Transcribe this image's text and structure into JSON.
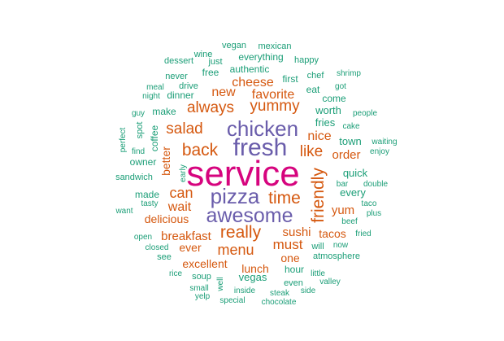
{
  "chart_data": {
    "type": "wordcloud",
    "palette": {
      "tier1": "#d6047e",
      "tier2": "#6a5dab",
      "tier3": "#d5580f",
      "tier4": "#1b9e77"
    },
    "words": [
      {
        "text": "service",
        "tier": "tier1",
        "weight": 100
      },
      {
        "text": "fresh",
        "tier": "tier2",
        "weight": 68
      },
      {
        "text": "chicken",
        "tier": "tier2",
        "weight": 60
      },
      {
        "text": "pizza",
        "tier": "tier2",
        "weight": 60
      },
      {
        "text": "awesome",
        "tier": "tier2",
        "weight": 58
      },
      {
        "text": "back",
        "tier": "tier3",
        "weight": 48
      },
      {
        "text": "time",
        "tier": "tier3",
        "weight": 48
      },
      {
        "text": "really",
        "tier": "tier3",
        "weight": 47
      },
      {
        "text": "friendly",
        "tier": "tier3",
        "weight": 47
      },
      {
        "text": "like",
        "tier": "tier3",
        "weight": 45
      },
      {
        "text": "always",
        "tier": "tier3",
        "weight": 44
      },
      {
        "text": "yummy",
        "tier": "tier3",
        "weight": 43
      },
      {
        "text": "salad",
        "tier": "tier3",
        "weight": 43
      },
      {
        "text": "can",
        "tier": "tier3",
        "weight": 42
      },
      {
        "text": "menu",
        "tier": "tier3",
        "weight": 41
      },
      {
        "text": "must",
        "tier": "tier3",
        "weight": 40
      },
      {
        "text": "wait",
        "tier": "tier3",
        "weight": 39
      },
      {
        "text": "nice",
        "tier": "tier3",
        "weight": 38
      },
      {
        "text": "new",
        "tier": "tier3",
        "weight": 38
      },
      {
        "text": "cheese",
        "tier": "tier3",
        "weight": 37
      },
      {
        "text": "favorite",
        "tier": "tier3",
        "weight": 37
      },
      {
        "text": "sushi",
        "tier": "tier3",
        "weight": 36
      },
      {
        "text": "yum",
        "tier": "tier3",
        "weight": 36
      },
      {
        "text": "order",
        "tier": "tier3",
        "weight": 35
      },
      {
        "text": "breakfast",
        "tier": "tier3",
        "weight": 35
      },
      {
        "text": "delicious",
        "tier": "tier3",
        "weight": 34
      },
      {
        "text": "excellent",
        "tier": "tier3",
        "weight": 34
      },
      {
        "text": "lunch",
        "tier": "tier3",
        "weight": 34
      },
      {
        "text": "tacos",
        "tier": "tier3",
        "weight": 34
      },
      {
        "text": "ever",
        "tier": "tier3",
        "weight": 33
      },
      {
        "text": "one",
        "tier": "tier3",
        "weight": 33
      },
      {
        "text": "better",
        "tier": "tier3",
        "weight": 33
      },
      {
        "text": "town",
        "tier": "tier4",
        "weight": 31
      },
      {
        "text": "quick",
        "tier": "tier4",
        "weight": 31
      },
      {
        "text": "every",
        "tier": "tier4",
        "weight": 31
      },
      {
        "text": "fries",
        "tier": "tier4",
        "weight": 31
      },
      {
        "text": "worth",
        "tier": "tier4",
        "weight": 31
      },
      {
        "text": "vegas",
        "tier": "tier4",
        "weight": 31
      },
      {
        "text": "coffee",
        "tier": "tier4",
        "weight": 30
      },
      {
        "text": "first",
        "tier": "tier4",
        "weight": 30
      },
      {
        "text": "eat",
        "tier": "tier4",
        "weight": 30
      },
      {
        "text": "come",
        "tier": "tier4",
        "weight": 30
      },
      {
        "text": "free",
        "tier": "tier4",
        "weight": 30
      },
      {
        "text": "make",
        "tier": "tier4",
        "weight": 30
      },
      {
        "text": "dinner",
        "tier": "tier4",
        "weight": 30
      },
      {
        "text": "authentic",
        "tier": "tier4",
        "weight": 30
      },
      {
        "text": "everything",
        "tier": "tier4",
        "weight": 30
      },
      {
        "text": "owner",
        "tier": "tier4",
        "weight": 30
      },
      {
        "text": "made",
        "tier": "tier4",
        "weight": 30
      },
      {
        "text": "hour",
        "tier": "tier4",
        "weight": 30
      },
      {
        "text": "atmosphere",
        "tier": "tier4",
        "weight": 29
      },
      {
        "text": "will",
        "tier": "tier4",
        "weight": 29
      },
      {
        "text": "sandwich",
        "tier": "tier4",
        "weight": 29
      },
      {
        "text": "soup",
        "tier": "tier4",
        "weight": 29
      },
      {
        "text": "drive",
        "tier": "tier4",
        "weight": 29
      },
      {
        "text": "spot",
        "tier": "tier4",
        "weight": 28
      },
      {
        "text": "see",
        "tier": "tier4",
        "weight": 28
      },
      {
        "text": "even",
        "tier": "tier4",
        "weight": 28
      },
      {
        "text": "chef",
        "tier": "tier4",
        "weight": 27
      },
      {
        "text": "happy",
        "tier": "tier4",
        "weight": 27
      },
      {
        "text": "mexican",
        "tier": "tier4",
        "weight": 27
      },
      {
        "text": "vegan",
        "tier": "tier4",
        "weight": 27
      },
      {
        "text": "wine",
        "tier": "tier4",
        "weight": 27
      },
      {
        "text": "just",
        "tier": "tier4",
        "weight": 27
      },
      {
        "text": "dessert",
        "tier": "tier4",
        "weight": 27
      },
      {
        "text": "never",
        "tier": "tier4",
        "weight": 27
      },
      {
        "text": "meal",
        "tier": "tier4",
        "weight": 27
      },
      {
        "text": "night",
        "tier": "tier4",
        "weight": 27
      },
      {
        "text": "guy",
        "tier": "tier4",
        "weight": 27
      },
      {
        "text": "got",
        "tier": "tier4",
        "weight": 27
      },
      {
        "text": "shrimp",
        "tier": "tier4",
        "weight": 27
      },
      {
        "text": "people",
        "tier": "tier4",
        "weight": 27
      },
      {
        "text": "cake",
        "tier": "tier4",
        "weight": 27
      },
      {
        "text": "waiting",
        "tier": "tier4",
        "weight": 27
      },
      {
        "text": "enjoy",
        "tier": "tier4",
        "weight": 27
      },
      {
        "text": "find",
        "tier": "tier4",
        "weight": 27
      },
      {
        "text": "perfect",
        "tier": "tier4",
        "weight": 27
      },
      {
        "text": "early",
        "tier": "tier4",
        "weight": 27
      },
      {
        "text": "bar",
        "tier": "tier4",
        "weight": 27
      },
      {
        "text": "double",
        "tier": "tier4",
        "weight": 27
      },
      {
        "text": "tasty",
        "tier": "tier4",
        "weight": 27
      },
      {
        "text": "taco",
        "tier": "tier4",
        "weight": 27
      },
      {
        "text": "want",
        "tier": "tier4",
        "weight": 27
      },
      {
        "text": "plus",
        "tier": "tier4",
        "weight": 27
      },
      {
        "text": "beef",
        "tier": "tier4",
        "weight": 27
      },
      {
        "text": "open",
        "tier": "tier4",
        "weight": 27
      },
      {
        "text": "fried",
        "tier": "tier4",
        "weight": 27
      },
      {
        "text": "closed",
        "tier": "tier4",
        "weight": 27
      },
      {
        "text": "now",
        "tier": "tier4",
        "weight": 27
      },
      {
        "text": "little",
        "tier": "tier4",
        "weight": 27
      },
      {
        "text": "rice",
        "tier": "tier4",
        "weight": 27
      },
      {
        "text": "valley",
        "tier": "tier4",
        "weight": 27
      },
      {
        "text": "small",
        "tier": "tier4",
        "weight": 27
      },
      {
        "text": "well",
        "tier": "tier4",
        "weight": 27
      },
      {
        "text": "inside",
        "tier": "tier4",
        "weight": 27
      },
      {
        "text": "side",
        "tier": "tier4",
        "weight": 27
      },
      {
        "text": "steak",
        "tier": "tier4",
        "weight": 27
      },
      {
        "text": "yelp",
        "tier": "tier4",
        "weight": 27
      },
      {
        "text": "special",
        "tier": "tier4",
        "weight": 27
      },
      {
        "text": "chocolate",
        "tier": "tier4",
        "weight": 27
      }
    ]
  }
}
